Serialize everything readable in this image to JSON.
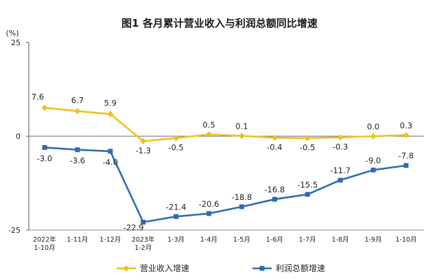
{
  "chart_data": {
    "type": "line",
    "title": "图1  各月累计营业收入与利润总额同比增速",
    "y_unit": "(%)",
    "ylim": [
      -25,
      25
    ],
    "y_ticks": [
      "25",
      "0",
      "-25"
    ],
    "categories": [
      [
        "2022年",
        "1-10月"
      ],
      [
        "1-11月"
      ],
      [
        "1-12月"
      ],
      [
        "2023年",
        "1-2月"
      ],
      [
        "1-3月"
      ],
      [
        "1-4月"
      ],
      [
        "1-5月"
      ],
      [
        "1-6月"
      ],
      [
        "1-7月"
      ],
      [
        "1-8月"
      ],
      [
        "1-9月"
      ],
      [
        "1-10月"
      ]
    ],
    "series": [
      {
        "name": "营业收入增速",
        "color": "#f0c020",
        "marker": "diamond",
        "values": [
          7.6,
          6.7,
          5.9,
          -1.3,
          -0.5,
          0.5,
          0.1,
          -0.4,
          -0.5,
          -0.3,
          0.0,
          0.3
        ],
        "labels": [
          "7.6",
          "6.7",
          "5.9",
          "-1.3",
          "-0.5",
          "0.5",
          "0.1",
          "-0.4",
          "-0.5",
          "-0.3",
          "0.0",
          "0.3"
        ]
      },
      {
        "name": "利润总额增速",
        "color": "#2e6bb0",
        "marker": "square",
        "values": [
          -3.0,
          -3.6,
          -4.0,
          -22.9,
          -21.4,
          -20.6,
          -18.8,
          -16.8,
          -15.5,
          -11.7,
          -9.0,
          -7.8
        ],
        "labels": [
          "-3.0",
          "-3.6",
          "-4.0",
          "-22.9",
          "-21.4",
          "-20.6",
          "-18.8",
          "-16.8",
          "-15.5",
          "-11.7",
          "-9.0",
          "-7.8"
        ]
      }
    ],
    "grid": false,
    "legend_position": "bottom"
  }
}
